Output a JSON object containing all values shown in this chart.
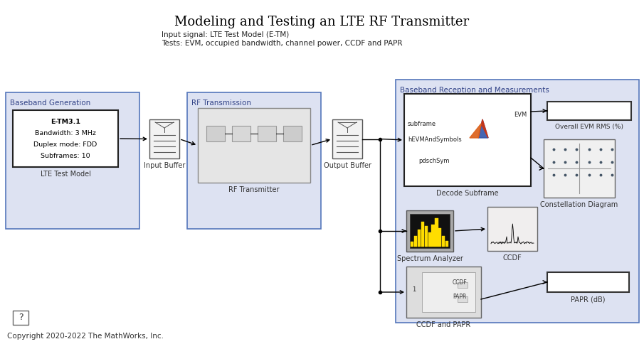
{
  "title": "Modeling and Testing an LTE RF Transmitter",
  "subtitle_line1": "Input signal: LTE Test Model (E-TM)",
  "subtitle_line2": "Tests: EVM, occupied bandwidth, channel power, CCDF and PAPR",
  "copyright": "Copyright 2020-2022 The MathWorks, Inc.",
  "bg_color": "#ffffff",
  "block_bg_lavender": "#dde2f2",
  "block_border_blue": "#5577bb",
  "lte_test_model_text": [
    "E-TM3.1",
    "Bandwidth: 3 MHz",
    "Duplex mode: FDD",
    "Subframes: 10"
  ],
  "section_labels": {
    "baseband_gen": "Baseband Generation",
    "rf_transmission": "RF Transmission",
    "baseband_reception": "Baseband Reception and Measurements"
  },
  "block_labels": {
    "lte_test_model": "LTE Test Model",
    "input_buffer": "Input Buffer",
    "rf_transmitter": "RF Transmitter",
    "output_buffer": "Output Buffer",
    "decode_subframe": "Decode Subframe",
    "spectrum_analyzer": "Spectrum Analyzer",
    "ccdf_papr": "CCDF and PAPR",
    "ccdf": "CCDF",
    "overall_evm": "Overall EVM RMS (%)",
    "constellation": "Constellation Diagram",
    "papr_db": "PAPR (dB)"
  }
}
